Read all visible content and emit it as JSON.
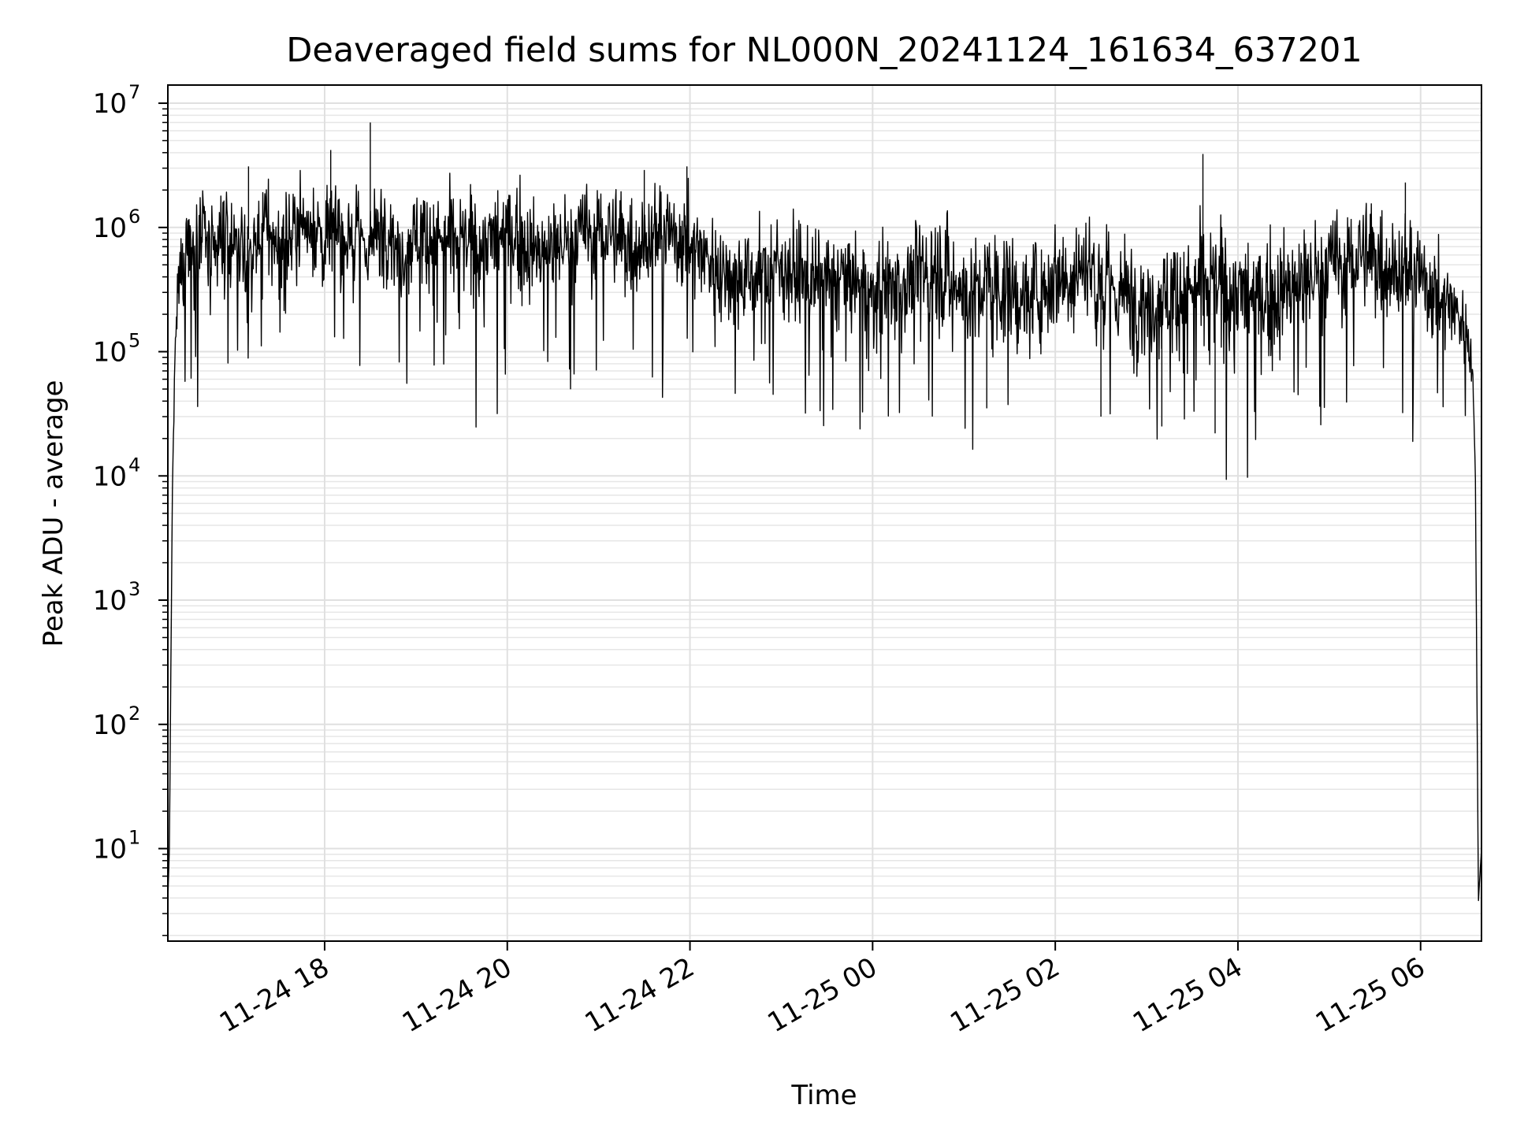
{
  "chart_data": {
    "type": "line",
    "title": "Deaveraged field sums for NL000N_20241124_161634_637201",
    "xlabel": "Time",
    "ylabel": "Peak ADU - average",
    "y_scale": "log",
    "ylim": [
      1.8,
      14000000
    ],
    "xlim": [
      "2024-11-24 16:17",
      "2024-11-25 06:40"
    ],
    "grid": true,
    "line_color": "#000000",
    "grid_color": "#e0e0e0",
    "x_ticks": [
      {
        "label": "11-24 18",
        "value": "2024-11-24 18:00"
      },
      {
        "label": "11-24 20",
        "value": "2024-11-24 20:00"
      },
      {
        "label": "11-24 22",
        "value": "2024-11-24 22:00"
      },
      {
        "label": "11-25 00",
        "value": "2024-11-25 00:00"
      },
      {
        "label": "11-25 02",
        "value": "2024-11-25 02:00"
      },
      {
        "label": "11-25 04",
        "value": "2024-11-25 04:00"
      },
      {
        "label": "11-25 06",
        "value": "2024-11-25 06:00"
      }
    ],
    "y_ticks": [
      {
        "base": "10",
        "exp": "1",
        "value": 10
      },
      {
        "base": "10",
        "exp": "2",
        "value": 100
      },
      {
        "base": "10",
        "exp": "3",
        "value": 1000
      },
      {
        "base": "10",
        "exp": "4",
        "value": 10000
      },
      {
        "base": "10",
        "exp": "5",
        "value": 100000
      },
      {
        "base": "10",
        "exp": "6",
        "value": 1000000
      },
      {
        "base": "10",
        "exp": "7",
        "value": 10000000
      }
    ],
    "series": [
      {
        "x": [
          "2024-11-24 16:17",
          "2024-11-24 16:18",
          "2024-11-24 16:20",
          "2024-11-24 16:22",
          "2024-11-24 16:24",
          "2024-11-24 16:26",
          "2024-11-24 16:30",
          "2024-11-24 16:35",
          "2024-11-24 16:40",
          "2024-11-24 16:45",
          "2024-11-24 16:50",
          "2024-11-24 17:00",
          "2024-11-24 17:10",
          "2024-11-24 17:20",
          "2024-11-24 17:30",
          "2024-11-24 17:40",
          "2024-11-24 17:50",
          "2024-11-24 18:00",
          "2024-11-24 18:10",
          "2024-11-24 18:20",
          "2024-11-24 18:30",
          "2024-11-24 18:40",
          "2024-11-24 18:50",
          "2024-11-24 19:00",
          "2024-11-24 19:20",
          "2024-11-24 19:40",
          "2024-11-24 20:00",
          "2024-11-24 20:20",
          "2024-11-24 20:40",
          "2024-11-24 21:00",
          "2024-11-24 21:20",
          "2024-11-24 21:40",
          "2024-11-24 22:00",
          "2024-11-24 22:20",
          "2024-11-24 22:40",
          "2024-11-24 23:00",
          "2024-11-24 23:20",
          "2024-11-24 23:40",
          "2024-11-25 00:00",
          "2024-11-25 00:20",
          "2024-11-25 00:40",
          "2024-11-25 01:00",
          "2024-11-25 01:20",
          "2024-11-25 01:40",
          "2024-11-25 02:00",
          "2024-11-25 02:20",
          "2024-11-25 02:40",
          "2024-11-25 03:00",
          "2024-11-25 03:20",
          "2024-11-25 03:40",
          "2024-11-25 04:00",
          "2024-11-25 04:20",
          "2024-11-25 04:40",
          "2024-11-25 05:00",
          "2024-11-25 05:20",
          "2024-11-25 05:40",
          "2024-11-25 06:00",
          "2024-11-25 06:10",
          "2024-11-25 06:20",
          "2024-11-25 06:30",
          "2024-11-25 06:34",
          "2024-11-25 06:36",
          "2024-11-25 06:38",
          "2024-11-25 06:40"
        ],
        "values": [
          3.8,
          10,
          8000,
          120000,
          300000,
          500000,
          900000,
          600000,
          1200000,
          400000,
          700000,
          800000,
          500000,
          1000000,
          700000,
          900000,
          1200000,
          800000,
          1000000,
          900000,
          700000,
          1100000,
          600000,
          900000,
          800000,
          700000,
          900000,
          600000,
          800000,
          1000000,
          700000,
          900000,
          800000,
          450000,
          400000,
          500000,
          350000,
          400000,
          300000,
          350000,
          500000,
          300000,
          350000,
          250000,
          400000,
          500000,
          300000,
          250000,
          300000,
          350000,
          300000,
          250000,
          350000,
          500000,
          600000,
          500000,
          400000,
          300000,
          250000,
          150000,
          80000,
          10000,
          3.8,
          10
        ],
        "noise_amplitude": [
          0,
          0,
          0,
          0.3,
          0.45,
          0.5,
          0.55,
          0.6,
          0.55,
          0.55,
          0.55,
          0.5,
          0.5,
          0.5,
          0.5,
          0.5,
          0.5,
          0.5,
          0.5,
          0.5,
          0.5,
          0.5,
          0.5,
          0.5,
          0.5,
          0.5,
          0.55,
          0.5,
          0.5,
          0.5,
          0.5,
          0.5,
          0.5,
          0.5,
          0.5,
          0.5,
          0.5,
          0.5,
          0.55,
          0.55,
          0.6,
          0.6,
          0.6,
          0.55,
          0.55,
          0.6,
          0.6,
          0.6,
          0.6,
          0.6,
          0.6,
          0.6,
          0.6,
          0.55,
          0.55,
          0.55,
          0.55,
          0.5,
          0.45,
          0.35,
          0.2,
          0,
          0,
          0
        ],
        "spikes": [
          {
            "x": "2024-11-24 18:30",
            "y": 7000000
          },
          {
            "x": "2024-11-24 18:04",
            "y": 4200000
          },
          {
            "x": "2024-11-24 21:58",
            "y": 3100000
          },
          {
            "x": "2024-11-25 03:37",
            "y": 3900000
          },
          {
            "x": "2024-11-24 21:30",
            "y": 2900000
          },
          {
            "x": "2024-11-25 05:50",
            "y": 2300000
          },
          {
            "x": "2024-11-24 17:10",
            "y": 3100000
          },
          {
            "x": "2024-11-25 03:45",
            "y": 22000
          },
          {
            "x": "2024-11-25 03:10",
            "y": 25000
          },
          {
            "x": "2024-11-25 02:30",
            "y": 30000
          },
          {
            "x": "2024-11-25 01:15",
            "y": 35000
          }
        ]
      }
    ]
  }
}
